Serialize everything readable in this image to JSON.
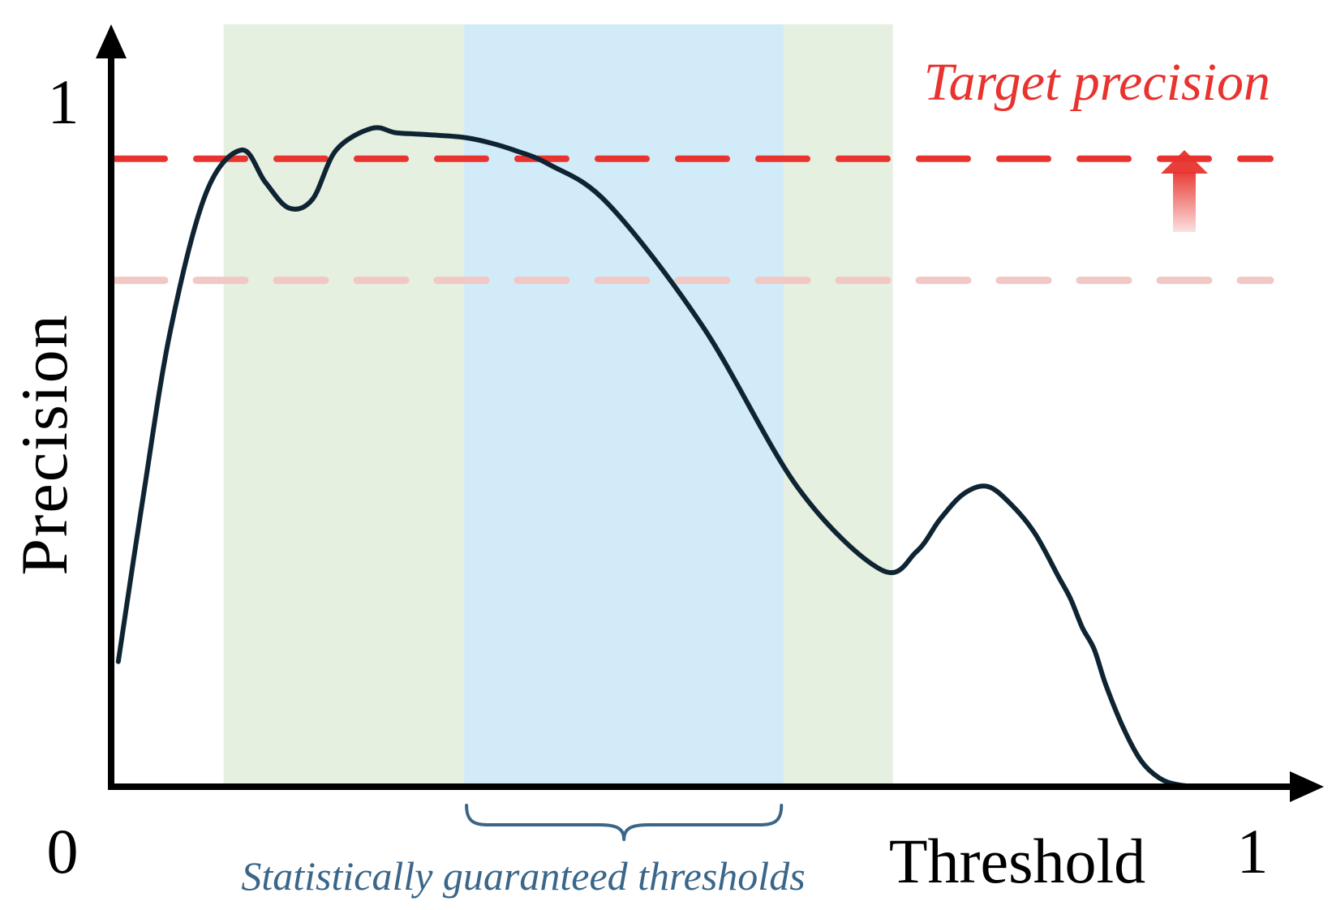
{
  "chart_data": {
    "type": "line",
    "xlabel": "Threshold",
    "ylabel": "Precision",
    "xlim": [
      0,
      1
    ],
    "ylim": [
      0,
      1
    ],
    "x_tick_labels": [
      "0",
      "1"
    ],
    "y_tick_labels": [
      "1"
    ],
    "grid": false,
    "series": [
      {
        "color": "#0f2433",
        "x": [
          0.006,
          0.027,
          0.05,
          0.08,
          0.11,
          0.13,
          0.15,
          0.17,
          0.19,
          0.22,
          0.24,
          0.26,
          0.28,
          0.3,
          0.32,
          0.34,
          0.37,
          0.42,
          0.5,
          0.58,
          0.65,
          0.68,
          0.7,
          0.72,
          0.74,
          0.76,
          0.78,
          0.8,
          0.81,
          0.82,
          0.83,
          0.84,
          0.855,
          0.87,
          0.885,
          0.9,
          0.92,
          0.94,
          0.955,
          0.967,
          0.978
        ],
        "y": [
          0.173,
          0.4,
          0.63,
          0.82,
          0.88,
          0.836,
          0.8,
          0.812,
          0.88,
          0.91,
          0.904,
          0.902,
          0.9,
          0.897,
          0.89,
          0.88,
          0.86,
          0.805,
          0.635,
          0.413,
          0.3,
          0.325,
          0.37,
          0.405,
          0.415,
          0.39,
          0.35,
          0.29,
          0.26,
          0.22,
          0.19,
          0.14,
          0.08,
          0.035,
          0.012,
          0.003,
          0.0,
          0.0,
          0.0,
          0.0,
          0.0
        ]
      }
    ],
    "reference_lines": [
      {
        "label": "Target precision",
        "y": 0.868,
        "color": "#e8332e"
      },
      {
        "y": 0.7,
        "color": "#f2c8c4"
      }
    ],
    "shaded_regions": [
      {
        "x_range": [
          0.095,
          0.298
        ],
        "color": "#e6f0e1"
      },
      {
        "x_range": [
          0.298,
          0.568
        ],
        "color": "#d2ebf8"
      },
      {
        "x_range": [
          0.568,
          0.66
        ],
        "color": "#e6f0e1"
      }
    ],
    "annotations": [
      {
        "text": "Statistically guaranteed thresholds",
        "x_range": [
          0.298,
          0.568
        ],
        "color": "#3a6689"
      }
    ],
    "arrow_color": "#e8332e"
  }
}
